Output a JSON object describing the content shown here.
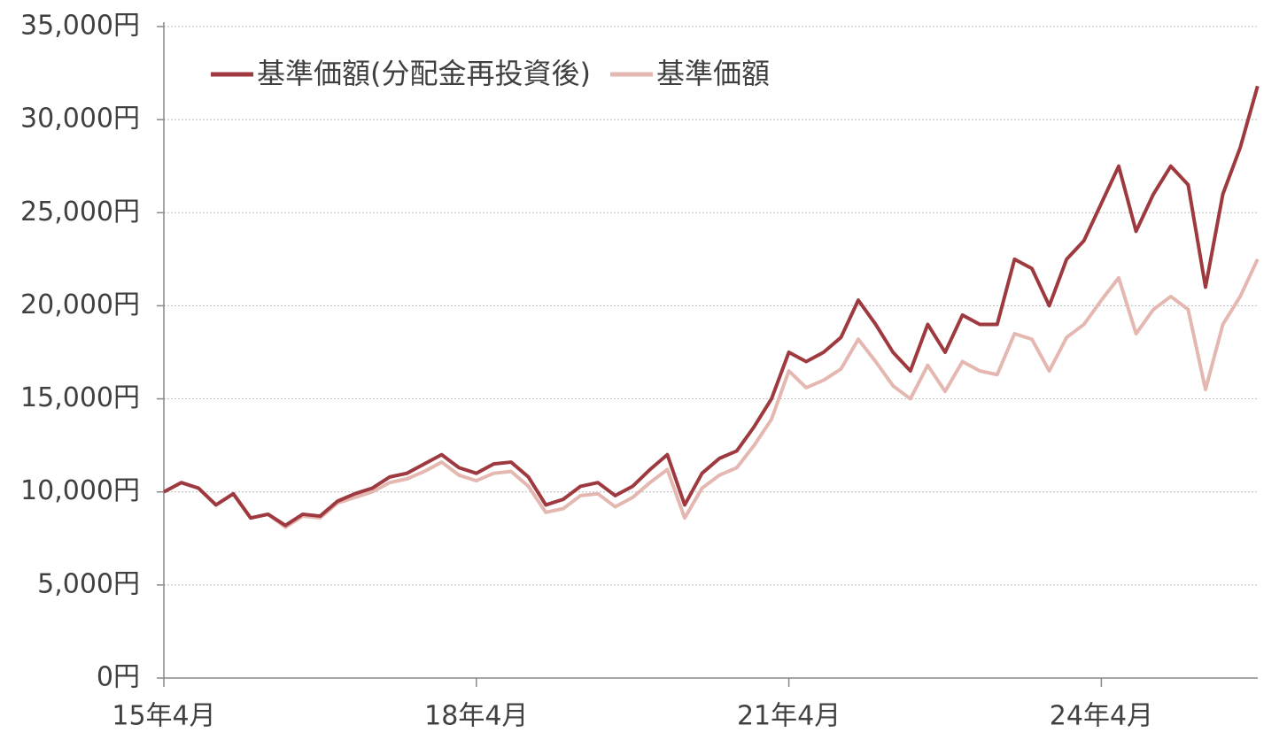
{
  "chart_data": {
    "type": "line",
    "categories": [
      "15年4月",
      null,
      null,
      null,
      null,
      null,
      null,
      null,
      null,
      null,
      null,
      null,
      null,
      null,
      null,
      null,
      null,
      null,
      "18年4月",
      null,
      null,
      null,
      null,
      null,
      null,
      null,
      null,
      null,
      null,
      null,
      null,
      null,
      null,
      null,
      null,
      null,
      "21年4月",
      null,
      null,
      null,
      null,
      null,
      null,
      null,
      null,
      null,
      null,
      null,
      null,
      null,
      null,
      null,
      null,
      null,
      "24年4月",
      null,
      null,
      null,
      null,
      null,
      null,
      null,
      null,
      null
    ],
    "series": [
      {
        "name": "基準価額(分配金再投資後)",
        "color": "#9e3a3f",
        "values": [
          10000,
          10500,
          10200,
          9300,
          9900,
          8600,
          8800,
          8200,
          8800,
          8700,
          9500,
          9900,
          10200,
          10800,
          11000,
          11500,
          12000,
          11300,
          11000,
          11500,
          11600,
          10800,
          9300,
          9600,
          10300,
          10500,
          9800,
          10300,
          11200,
          12000,
          9300,
          11000,
          11800,
          12200,
          13500,
          15000,
          17500,
          17000,
          17500,
          18300,
          20300,
          19000,
          17500,
          16500,
          19000,
          17500,
          19500,
          19000,
          19000,
          22500,
          22000,
          20000,
          22500,
          23500,
          25500,
          27500,
          24000,
          26000,
          27500,
          26500,
          21000,
          26000,
          28500,
          31800
        ]
      },
      {
        "name": "基準価額",
        "color": "#e4b8b0",
        "values": [
          10000,
          10500,
          10200,
          9300,
          9900,
          8600,
          8800,
          8100,
          8700,
          8600,
          9400,
          9700,
          10000,
          10500,
          10700,
          11100,
          11600,
          10900,
          10600,
          11000,
          11100,
          10300,
          8900,
          9100,
          9800,
          9900,
          9200,
          9700,
          10500,
          11200,
          8600,
          10200,
          10900,
          11300,
          12500,
          13900,
          16500,
          15600,
          16000,
          16600,
          18200,
          17000,
          15700,
          15000,
          16800,
          15400,
          17000,
          16500,
          16300,
          18500,
          18200,
          16500,
          18300,
          19000,
          20300,
          21500,
          18500,
          19800,
          20500,
          19800,
          15500,
          19000,
          20500,
          22500
        ]
      }
    ],
    "ylim": [
      0,
      35000
    ],
    "yticks": [
      {
        "value": 0,
        "label": "0円"
      },
      {
        "value": 5000,
        "label": "5,000円"
      },
      {
        "value": 10000,
        "label": "10,000円"
      },
      {
        "value": 15000,
        "label": "15,000円"
      },
      {
        "value": 20000,
        "label": "20,000円"
      },
      {
        "value": 25000,
        "label": "25,000円"
      },
      {
        "value": 30000,
        "label": "30,000円"
      },
      {
        "value": 35000,
        "label": "35,000円"
      }
    ],
    "grid": true
  }
}
